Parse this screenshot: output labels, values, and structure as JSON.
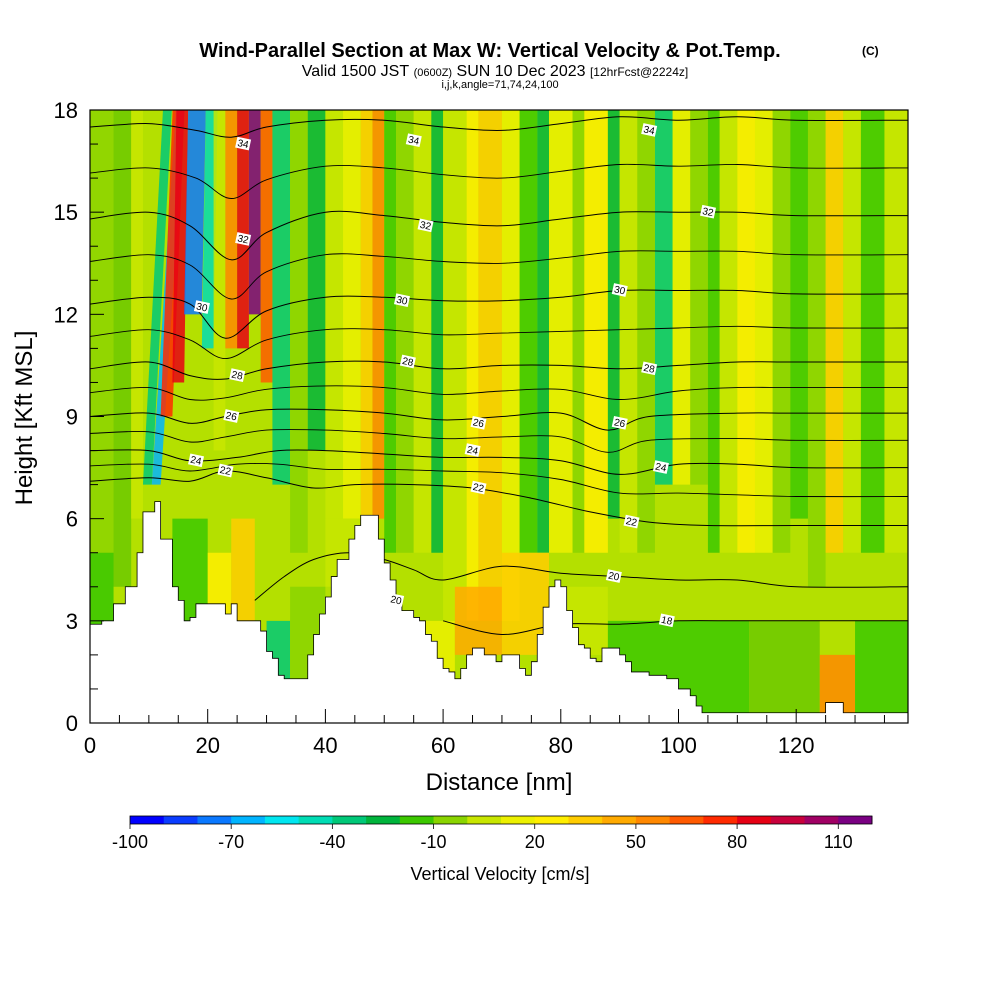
{
  "chart_data": {
    "type": "heatmap",
    "title": "Wind-Parallel Section at Max W: Vertical Velocity & Pot.Temp.",
    "title_mark": "(C)",
    "subtitle_a": "Valid 1500 JST",
    "subtitle_b": "(0600Z)",
    "subtitle_c": "SUN 10 Dec 2023",
    "subtitle_d": "[12hrFcst@2224z]",
    "subtitle2": "i,j,k,angle=71,74,24,100",
    "xlabel": "Distance [nm]",
    "ylabel": "Height [Kft MSL]",
    "xlim": [
      0,
      139
    ],
    "ylim": [
      0,
      18
    ],
    "xticks": [
      "0",
      "20",
      "40",
      "60",
      "80",
      "100",
      "120"
    ],
    "xtick_values": [
      0,
      20,
      40,
      60,
      80,
      100,
      120
    ],
    "yticks": [
      "0",
      "3",
      "6",
      "9",
      "12",
      "15",
      "18"
    ],
    "ytick_values": [
      0,
      3,
      6,
      9,
      12,
      15,
      18
    ],
    "colorbar_label": "Vertical Velocity [cm/s]",
    "colorbar_ticks": [
      "-100",
      "-70",
      "-40",
      "-10",
      "20",
      "50",
      "80",
      "110"
    ],
    "colorbar_colors": [
      "#0000ff",
      "#0a3cff",
      "#0a78ff",
      "#00b4ff",
      "#00e6f0",
      "#00dcb4",
      "#00c878",
      "#00b43c",
      "#3cc800",
      "#8ad400",
      "#c8e600",
      "#ecf000",
      "#ffee00",
      "#ffcc00",
      "#ffaa00",
      "#ff8800",
      "#ff5a00",
      "#ff2a00",
      "#e60014",
      "#c8003c",
      "#a00064",
      "#7a0082"
    ],
    "contours": [
      {
        "label": "34",
        "points": [
          [
            0,
            17.5
          ],
          [
            10,
            17.6
          ],
          [
            18,
            17.4
          ],
          [
            24,
            17.2
          ],
          [
            30,
            17.5
          ],
          [
            40,
            17.7
          ],
          [
            50,
            17.7
          ],
          [
            60,
            17.5
          ],
          [
            70,
            17.4
          ],
          [
            80,
            17.6
          ],
          [
            90,
            17.8
          ],
          [
            100,
            17.7
          ],
          [
            110,
            17.8
          ],
          [
            120,
            17.7
          ],
          [
            139,
            17.7
          ]
        ],
        "labels": [
          [
            26,
            17.0
          ],
          [
            55,
            17.1
          ],
          [
            95,
            17.4
          ]
        ]
      },
      {
        "label": "32",
        "points": [
          [
            0,
            14.8
          ],
          [
            10,
            15.0
          ],
          [
            17,
            14.6
          ],
          [
            24,
            13.6
          ],
          [
            30,
            14.4
          ],
          [
            40,
            15.0
          ],
          [
            50,
            14.9
          ],
          [
            60,
            14.7
          ],
          [
            70,
            14.6
          ],
          [
            80,
            14.8
          ],
          [
            90,
            15.0
          ],
          [
            100,
            15.0
          ],
          [
            110,
            15.0
          ],
          [
            120,
            14.9
          ],
          [
            139,
            14.9
          ]
        ],
        "labels": [
          [
            26,
            14.2
          ],
          [
            57,
            14.6
          ],
          [
            105,
            15.0
          ]
        ]
      },
      {
        "label": "30",
        "points": [
          [
            0,
            12.3
          ],
          [
            10,
            12.5
          ],
          [
            17,
            12.3
          ],
          [
            23,
            11.3
          ],
          [
            30,
            12.1
          ],
          [
            40,
            12.5
          ],
          [
            50,
            12.5
          ],
          [
            60,
            12.4
          ],
          [
            70,
            12.4
          ],
          [
            80,
            12.5
          ],
          [
            90,
            12.7
          ],
          [
            100,
            12.7
          ],
          [
            110,
            12.7
          ],
          [
            120,
            12.6
          ],
          [
            139,
            12.6
          ]
        ],
        "labels": [
          [
            19,
            12.2
          ],
          [
            53,
            12.4
          ],
          [
            90,
            12.7
          ]
        ]
      },
      {
        "label": "28",
        "points": [
          [
            0,
            10.4
          ],
          [
            10,
            10.6
          ],
          [
            17,
            10.2
          ],
          [
            23,
            10.1
          ],
          [
            30,
            10.4
          ],
          [
            40,
            10.6
          ],
          [
            50,
            10.6
          ],
          [
            60,
            10.4
          ],
          [
            70,
            10.5
          ],
          [
            80,
            10.5
          ],
          [
            90,
            10.4
          ],
          [
            100,
            10.5
          ],
          [
            110,
            10.6
          ],
          [
            120,
            10.6
          ],
          [
            139,
            10.6
          ]
        ],
        "labels": [
          [
            25,
            10.2
          ],
          [
            54,
            10.6
          ],
          [
            95,
            10.4
          ]
        ]
      },
      {
        "label": "26",
        "points": [
          [
            0,
            9.0
          ],
          [
            10,
            9.1
          ],
          [
            17,
            8.8
          ],
          [
            23,
            9.0
          ],
          [
            30,
            9.2
          ],
          [
            40,
            9.2
          ],
          [
            50,
            9.1
          ],
          [
            60,
            8.9
          ],
          [
            70,
            9.0
          ],
          [
            80,
            9.1
          ],
          [
            88,
            8.6
          ],
          [
            95,
            9.0
          ],
          [
            110,
            9.1
          ],
          [
            120,
            9.1
          ],
          [
            139,
            9.1
          ]
        ],
        "labels": [
          [
            24,
            9.0
          ],
          [
            66,
            8.8
          ],
          [
            90,
            8.8
          ]
        ]
      },
      {
        "label": "24",
        "points": [
          [
            0,
            8.0
          ],
          [
            10,
            8.0
          ],
          [
            17,
            7.7
          ],
          [
            25,
            7.8
          ],
          [
            32,
            8.0
          ],
          [
            40,
            8.0
          ],
          [
            50,
            7.9
          ],
          [
            60,
            7.8
          ],
          [
            70,
            7.8
          ],
          [
            80,
            7.7
          ],
          [
            90,
            7.3
          ],
          [
            100,
            7.6
          ],
          [
            110,
            7.6
          ],
          [
            120,
            7.5
          ],
          [
            139,
            7.5
          ]
        ],
        "labels": [
          [
            18,
            7.7
          ],
          [
            65,
            8.0
          ],
          [
            97,
            7.5
          ]
        ]
      },
      {
        "label": "22",
        "points": [
          [
            0,
            7.1
          ],
          [
            10,
            7.2
          ],
          [
            17,
            7.1
          ],
          [
            23,
            7.4
          ],
          [
            30,
            7.2
          ],
          [
            38,
            6.9
          ],
          [
            45,
            7.0
          ],
          [
            55,
            7.0
          ],
          [
            65,
            6.9
          ],
          [
            75,
            6.6
          ],
          [
            85,
            6.2
          ],
          [
            95,
            5.9
          ],
          [
            105,
            5.8
          ],
          [
            120,
            5.8
          ],
          [
            139,
            5.8
          ]
        ],
        "labels": [
          [
            23,
            7.4
          ],
          [
            66,
            6.9
          ],
          [
            92,
            5.9
          ]
        ]
      },
      {
        "label": "20",
        "points": [
          [
            28,
            3.6
          ],
          [
            33,
            4.3
          ],
          [
            38,
            4.8
          ],
          [
            44,
            5.0
          ],
          [
            50,
            4.8
          ],
          [
            55,
            4.5
          ],
          [
            60,
            4.2
          ],
          [
            70,
            4.6
          ],
          [
            80,
            4.4
          ],
          [
            90,
            4.3
          ],
          [
            100,
            4.2
          ],
          [
            110,
            4.2
          ],
          [
            120,
            4.0
          ],
          [
            139,
            4.0
          ]
        ],
        "labels": [
          [
            52,
            3.6
          ],
          [
            89,
            4.3
          ]
        ]
      },
      {
        "label": "18",
        "points": [
          [
            60,
            3.0
          ],
          [
            70,
            2.6
          ],
          [
            80,
            2.9
          ],
          [
            90,
            2.9
          ],
          [
            100,
            3.0
          ],
          [
            110,
            3.0
          ],
          [
            120,
            3.0
          ],
          [
            139,
            3.0
          ]
        ],
        "labels": [
          [
            98,
            3.0
          ]
        ]
      }
    ],
    "terrain": [
      [
        0,
        2.9
      ],
      [
        2,
        3.0
      ],
      [
        4,
        3.5
      ],
      [
        6,
        4.0
      ],
      [
        8,
        5.0
      ],
      [
        9,
        6.2
      ],
      [
        11,
        6.5
      ],
      [
        12,
        5.4
      ],
      [
        14,
        4.0
      ],
      [
        15,
        3.6
      ],
      [
        16,
        3.0
      ],
      [
        17,
        3.1
      ],
      [
        18,
        3.5
      ],
      [
        22,
        3.5
      ],
      [
        23,
        3.2
      ],
      [
        24,
        3.5
      ],
      [
        25,
        3.0
      ],
      [
        28,
        3.0
      ],
      [
        29,
        2.7
      ],
      [
        30,
        2.1
      ],
      [
        31,
        1.9
      ],
      [
        32,
        1.4
      ],
      [
        33,
        1.3
      ],
      [
        36,
        1.3
      ],
      [
        37,
        2.0
      ],
      [
        38,
        2.6
      ],
      [
        39,
        3.2
      ],
      [
        40,
        3.7
      ],
      [
        41,
        4.3
      ],
      [
        42,
        4.8
      ],
      [
        44,
        5.4
      ],
      [
        45,
        5.8
      ],
      [
        46,
        6.1
      ],
      [
        48,
        6.1
      ],
      [
        49,
        5.4
      ],
      [
        50,
        4.7
      ],
      [
        51,
        4.2
      ],
      [
        52,
        3.6
      ],
      [
        53,
        3.3
      ],
      [
        55,
        3.1
      ],
      [
        56,
        3.0
      ],
      [
        57,
        2.6
      ],
      [
        58,
        2.4
      ],
      [
        59,
        1.9
      ],
      [
        60,
        1.6
      ],
      [
        61,
        1.5
      ],
      [
        62,
        1.3
      ],
      [
        63,
        1.6
      ],
      [
        64,
        2.0
      ],
      [
        65,
        2.2
      ],
      [
        66,
        2.2
      ],
      [
        67,
        2.0
      ],
      [
        68,
        2.0
      ],
      [
        69,
        1.8
      ],
      [
        70,
        2.0
      ],
      [
        72,
        2.0
      ],
      [
        73,
        1.6
      ],
      [
        74,
        1.4
      ],
      [
        75,
        1.8
      ],
      [
        76,
        2.6
      ],
      [
        77,
        3.4
      ],
      [
        78,
        4.0
      ],
      [
        79,
        4.2
      ],
      [
        80,
        4.0
      ],
      [
        81,
        3.3
      ],
      [
        82,
        2.8
      ],
      [
        83,
        2.3
      ],
      [
        84,
        2.2
      ],
      [
        85,
        1.9
      ],
      [
        86,
        1.8
      ],
      [
        87,
        2.2
      ],
      [
        89,
        2.2
      ],
      [
        90,
        2.0
      ],
      [
        91,
        1.8
      ],
      [
        92,
        1.5
      ],
      [
        95,
        1.4
      ],
      [
        98,
        1.3
      ],
      [
        100,
        1.0
      ],
      [
        102,
        0.8
      ],
      [
        103,
        0.5
      ],
      [
        104,
        0.3
      ],
      [
        124,
        0.3
      ],
      [
        125,
        0.6
      ],
      [
        127,
        0.6
      ],
      [
        128,
        0.3
      ],
      [
        139,
        0.3
      ]
    ]
  }
}
